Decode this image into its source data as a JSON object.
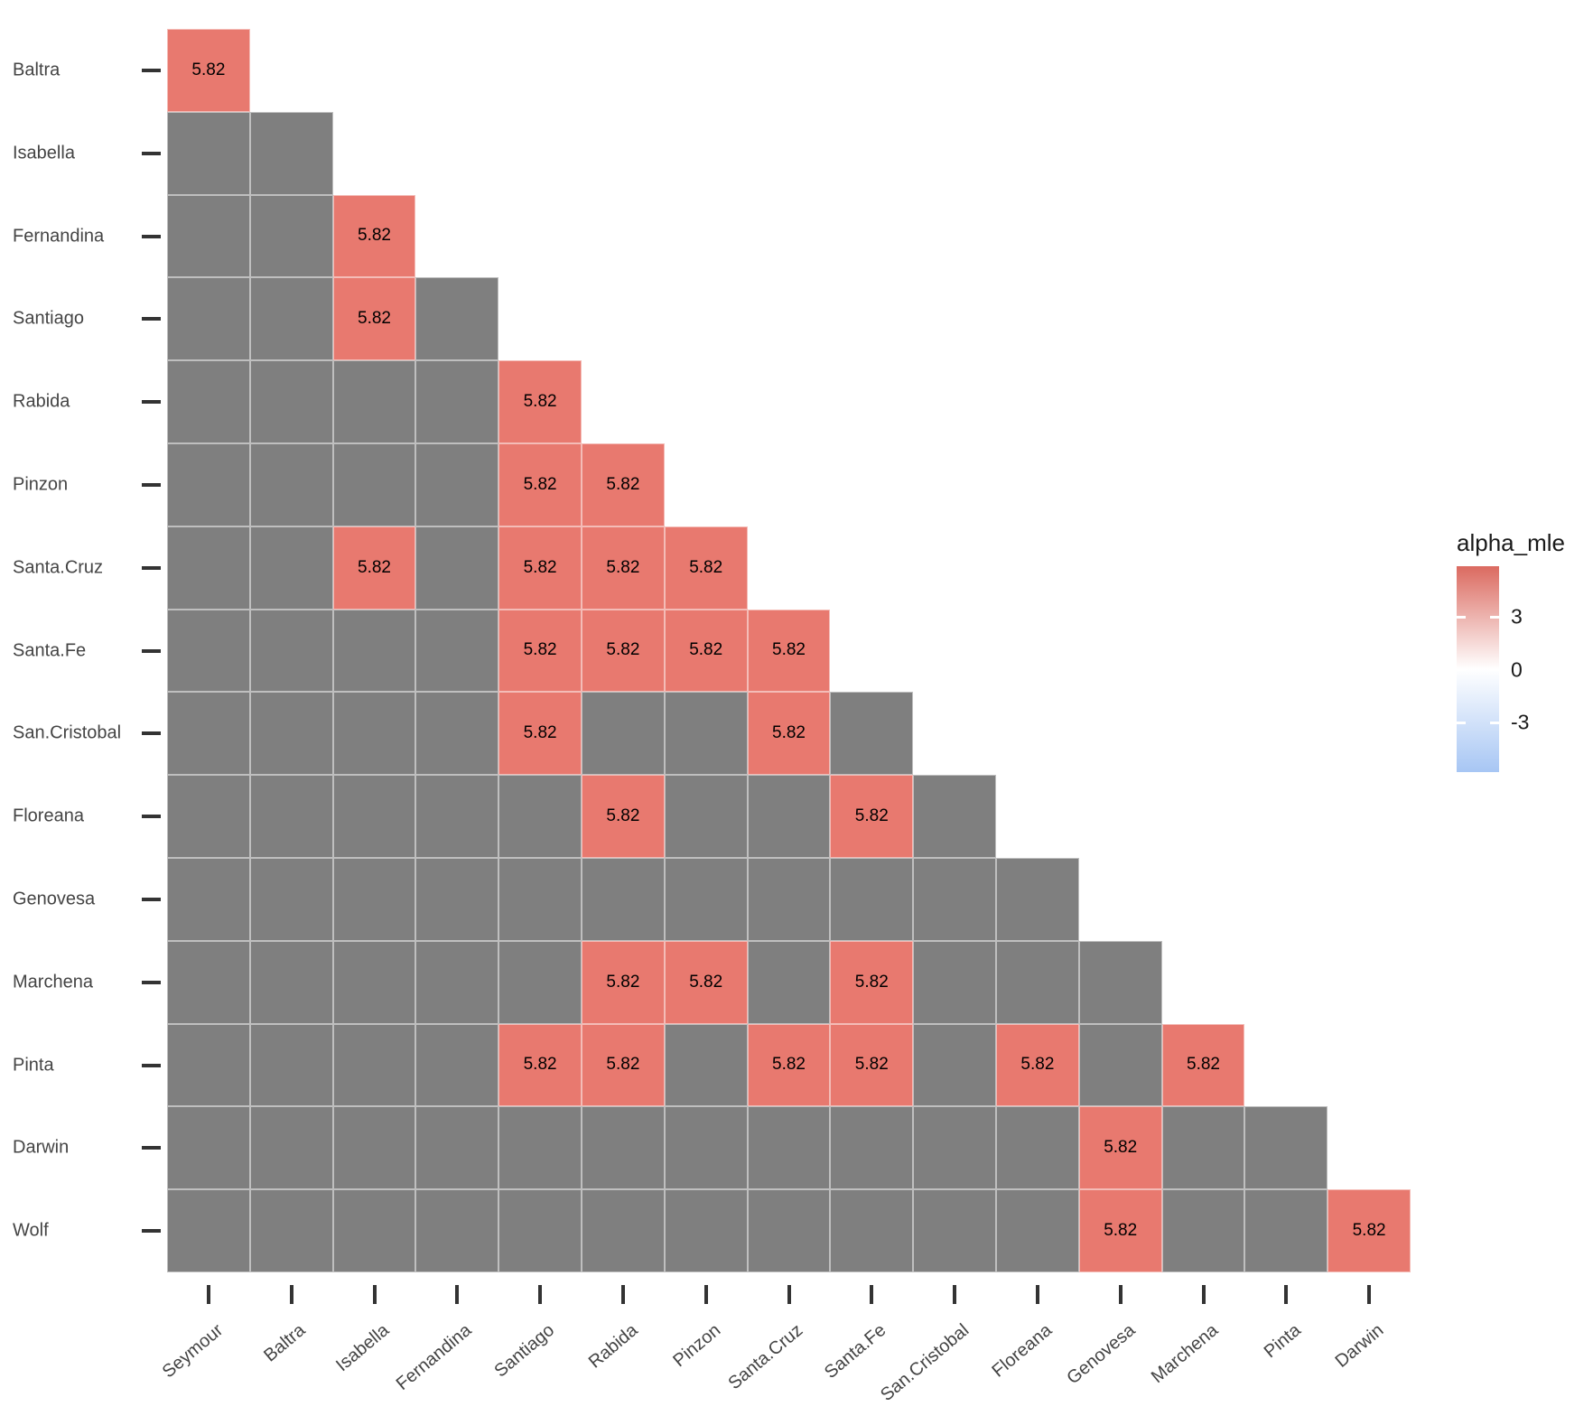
{
  "chart_data": {
    "type": "heatmap",
    "title": "",
    "legend": {
      "title": "alpha_mle",
      "ticks": [
        "3",
        "0",
        "-3"
      ],
      "high_color": "#DB6A60",
      "mid_color": "#FFFFFF",
      "low_color": "#A7C6F4"
    },
    "na_color": "#7F7F7F",
    "value_color": "#E8796F",
    "value_text_color": "#000000",
    "x_categories": [
      "Seymour",
      "Baltra",
      "Isabella",
      "Fernandina",
      "Santiago",
      "Rabida",
      "Pinzon",
      "Santa.Cruz",
      "Santa.Fe",
      "San.Cristobal",
      "Floreana",
      "Genovesa",
      "Marchena",
      "Pinta",
      "Darwin"
    ],
    "y_categories": [
      "Baltra",
      "Isabella",
      "Fernandina",
      "Santiago",
      "Rabida",
      "Pinzon",
      "Santa.Cruz",
      "Santa.Fe",
      "San.Cristobal",
      "Floreana",
      "Genovesa",
      "Marchena",
      "Pinta",
      "Darwin",
      "Wolf"
    ],
    "rows": [
      {
        "name": "Baltra",
        "cells": [
          5.82
        ]
      },
      {
        "name": "Isabella",
        "cells": [
          null,
          null
        ]
      },
      {
        "name": "Fernandina",
        "cells": [
          null,
          null,
          5.82
        ]
      },
      {
        "name": "Santiago",
        "cells": [
          null,
          null,
          5.82,
          null
        ]
      },
      {
        "name": "Rabida",
        "cells": [
          null,
          null,
          null,
          null,
          5.82
        ]
      },
      {
        "name": "Pinzon",
        "cells": [
          null,
          null,
          null,
          null,
          5.82,
          5.82
        ]
      },
      {
        "name": "Santa.Cruz",
        "cells": [
          null,
          null,
          5.82,
          null,
          5.82,
          5.82,
          5.82
        ]
      },
      {
        "name": "Santa.Fe",
        "cells": [
          null,
          null,
          null,
          null,
          5.82,
          5.82,
          5.82,
          5.82
        ]
      },
      {
        "name": "San.Cristobal",
        "cells": [
          null,
          null,
          null,
          null,
          5.82,
          null,
          null,
          5.82,
          null
        ]
      },
      {
        "name": "Floreana",
        "cells": [
          null,
          null,
          null,
          null,
          null,
          5.82,
          null,
          null,
          5.82,
          null
        ]
      },
      {
        "name": "Genovesa",
        "cells": [
          null,
          null,
          null,
          null,
          null,
          null,
          null,
          null,
          null,
          null,
          null
        ]
      },
      {
        "name": "Marchena",
        "cells": [
          null,
          null,
          null,
          null,
          null,
          5.82,
          5.82,
          null,
          5.82,
          null,
          null,
          null
        ]
      },
      {
        "name": "Pinta",
        "cells": [
          null,
          null,
          null,
          null,
          5.82,
          5.82,
          null,
          5.82,
          5.82,
          null,
          5.82,
          null,
          5.82
        ]
      },
      {
        "name": "Darwin",
        "cells": [
          null,
          null,
          null,
          null,
          null,
          null,
          null,
          null,
          null,
          null,
          null,
          5.82,
          null,
          null
        ]
      },
      {
        "name": "Wolf",
        "cells": [
          null,
          null,
          null,
          null,
          null,
          null,
          null,
          null,
          null,
          null,
          null,
          5.82,
          null,
          null,
          5.82
        ]
      }
    ]
  }
}
